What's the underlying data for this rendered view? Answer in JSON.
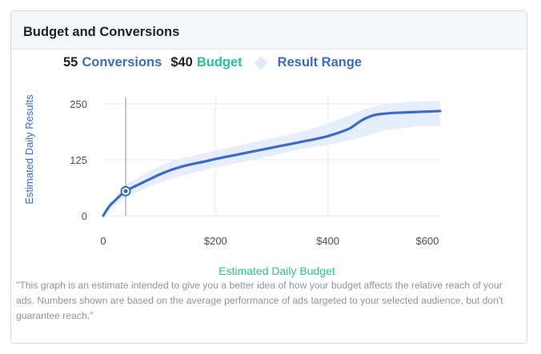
{
  "card": {
    "title": "Budget and Conversions"
  },
  "legend": {
    "conversions_value": "55",
    "conversions_label": "Conversions",
    "budget_value": "$40",
    "budget_label": "Budget",
    "range_label": "Result Range"
  },
  "colors": {
    "line": "#3c6ac8",
    "band": "#e5eefa",
    "budget_accent": "#2bbf9a",
    "marker": "#3c6ac8"
  },
  "chart_data": {
    "type": "line",
    "xlabel": "Estimated Daily Budget",
    "ylabel": "Estimated Daily Results",
    "x_ticks": [
      {
        "value": 0,
        "label": "0"
      },
      {
        "value": 200,
        "label": "$200"
      },
      {
        "value": 400,
        "label": "$400"
      },
      {
        "value": 600,
        "label": "$600"
      }
    ],
    "y_ticks": [
      {
        "value": 0,
        "label": "0"
      },
      {
        "value": 125,
        "label": "125"
      },
      {
        "value": 250,
        "label": "250"
      }
    ],
    "xlim": [
      0,
      600
    ],
    "ylim": [
      0,
      262
    ],
    "grid": true,
    "selected_point": {
      "x": 40,
      "y": 55
    },
    "series": [
      {
        "name": "Conversions",
        "x": [
          0,
          10,
          20,
          30,
          40,
          60,
          80,
          100,
          120,
          140,
          160,
          180,
          200,
          220,
          240,
          260,
          280,
          300,
          320,
          340,
          360,
          380,
          400,
          420,
          440,
          460,
          480,
          500,
          520,
          540,
          560,
          580,
          600
        ],
        "y": [
          0,
          20,
          33,
          45,
          55,
          68,
          80,
          92,
          102,
          110,
          116,
          121,
          127,
          132,
          137,
          142,
          147,
          152,
          157,
          162,
          167,
          172,
          178,
          186,
          196,
          213,
          224,
          228,
          230,
          231,
          232,
          233,
          234
        ]
      }
    ],
    "range": {
      "name": "Result Range",
      "x": [
        0,
        40,
        80,
        120,
        160,
        200,
        240,
        280,
        320,
        360,
        400,
        430,
        460,
        500,
        560,
        600
      ],
      "upper": [
        0,
        70,
        98,
        122,
        134,
        146,
        156,
        168,
        178,
        190,
        206,
        220,
        236,
        250,
        256,
        256
      ],
      "lower": [
        0,
        42,
        64,
        82,
        96,
        108,
        118,
        128,
        140,
        150,
        158,
        166,
        176,
        190,
        200,
        200
      ]
    }
  },
  "footnote": "\"This graph is an estimate intended to give you a better idea of how your budget affects the relative reach of your ads. Numbers shown are based on the average performance of ads targeted to your selected audience, but don't guarantee reach.\""
}
